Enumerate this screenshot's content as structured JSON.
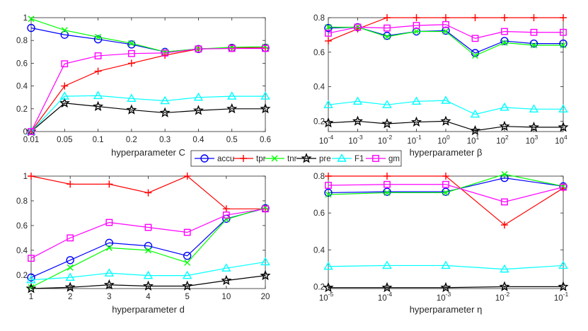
{
  "legend": {
    "items": [
      {
        "label": "accu",
        "color": "#0000ff",
        "marker": "circle"
      },
      {
        "label": "tpr",
        "color": "#ff0000",
        "marker": "plus"
      },
      {
        "label": "tnr",
        "color": "#00ff00",
        "marker": "x"
      },
      {
        "label": "pre",
        "color": "#000000",
        "marker": "star"
      },
      {
        "label": "F1",
        "color": "#00ffff",
        "marker": "triangle"
      },
      {
        "label": "gm",
        "color": "#ff00ff",
        "marker": "square"
      }
    ]
  },
  "chart_data": [
    {
      "type": "line",
      "id": "C",
      "xlabel": "hyperparameter C",
      "categories": [
        "0.01",
        "0.05",
        "0.1",
        "0.2",
        "0.3",
        "0.4",
        "0.5",
        "0.6"
      ],
      "ylim": [
        0,
        1
      ],
      "yticks": [
        "0",
        "0.2",
        "0.4",
        "0.6",
        "0.8",
        "1"
      ],
      "series": [
        {
          "name": "accu",
          "values": [
            0.91,
            0.85,
            0.81,
            0.765,
            0.7,
            0.725,
            0.735,
            0.735
          ]
        },
        {
          "name": "tpr",
          "values": [
            0.0,
            0.4,
            0.53,
            0.6,
            0.67,
            0.725,
            0.735,
            0.735
          ]
        },
        {
          "name": "tnr",
          "values": [
            0.99,
            0.89,
            0.83,
            0.775,
            0.7,
            0.725,
            0.74,
            0.745
          ]
        },
        {
          "name": "pre",
          "values": [
            0.0,
            0.25,
            0.22,
            0.19,
            0.165,
            0.185,
            0.2,
            0.2
          ]
        },
        {
          "name": "F1",
          "values": [
            0.0,
            0.31,
            0.315,
            0.29,
            0.27,
            0.3,
            0.31,
            0.31
          ]
        },
        {
          "name": "gm",
          "values": [
            0.0,
            0.595,
            0.665,
            0.685,
            0.69,
            0.725,
            0.73,
            0.73
          ]
        }
      ]
    },
    {
      "type": "line",
      "id": "beta",
      "xlabel": "hyperparameter β",
      "categories": [
        "10^-4",
        "10^-3",
        "10^-2",
        "10^-1",
        "10^0",
        "10^1",
        "10^2",
        "10^3",
        "10^4"
      ],
      "xticks": [
        {
          "base": "10",
          "exp": "-4"
        },
        {
          "base": "10",
          "exp": "-3"
        },
        {
          "base": "10",
          "exp": "-2"
        },
        {
          "base": "10",
          "exp": "-1"
        },
        {
          "base": "10",
          "exp": "0"
        },
        {
          "base": "10",
          "exp": "1"
        },
        {
          "base": "10",
          "exp": "2"
        },
        {
          "base": "10",
          "exp": "3"
        },
        {
          "base": "10",
          "exp": "4"
        }
      ],
      "ylim": [
        0.14,
        0.8
      ],
      "yticks": [
        "0.2",
        "0.4",
        "0.6",
        "0.8"
      ],
      "series": [
        {
          "name": "accu",
          "values": [
            0.74,
            0.745,
            0.695,
            0.72,
            0.725,
            0.595,
            0.665,
            0.65,
            0.65
          ]
        },
        {
          "name": "tpr",
          "values": [
            0.665,
            0.735,
            0.8,
            0.8,
            0.8,
            0.8,
            0.8,
            0.8,
            0.8
          ]
        },
        {
          "name": "tnr",
          "values": [
            0.745,
            0.745,
            0.69,
            0.72,
            0.72,
            0.58,
            0.655,
            0.64,
            0.64
          ]
        },
        {
          "name": "pre",
          "values": [
            0.19,
            0.2,
            0.185,
            0.195,
            0.2,
            0.145,
            0.17,
            0.165,
            0.165
          ]
        },
        {
          "name": "F1",
          "values": [
            0.295,
            0.315,
            0.295,
            0.315,
            0.32,
            0.24,
            0.28,
            0.27,
            0.27
          ]
        },
        {
          "name": "gm",
          "values": [
            0.71,
            0.745,
            0.74,
            0.755,
            0.76,
            0.68,
            0.72,
            0.715,
            0.715
          ]
        }
      ]
    },
    {
      "type": "line",
      "id": "d",
      "xlabel": "hyperparameter d",
      "categories": [
        "1",
        "2",
        "3",
        "4",
        "5",
        "10",
        "20"
      ],
      "ylim": [
        0.09,
        1
      ],
      "yticks": [
        "0.2",
        "0.4",
        "0.6",
        "0.8",
        "1"
      ],
      "series": [
        {
          "name": "accu",
          "values": [
            0.18,
            0.32,
            0.46,
            0.435,
            0.355,
            0.655,
            0.74
          ]
        },
        {
          "name": "tpr",
          "values": [
            1.0,
            0.935,
            0.935,
            0.865,
            1.0,
            0.735,
            0.735
          ]
        },
        {
          "name": "tnr",
          "values": [
            0.1,
            0.26,
            0.42,
            0.4,
            0.3,
            0.65,
            0.745
          ]
        },
        {
          "name": "pre",
          "values": [
            0.09,
            0.1,
            0.12,
            0.11,
            0.11,
            0.155,
            0.195
          ]
        },
        {
          "name": "F1",
          "values": [
            0.16,
            0.18,
            0.215,
            0.195,
            0.195,
            0.255,
            0.305
          ]
        },
        {
          "name": "gm",
          "values": [
            0.335,
            0.5,
            0.625,
            0.585,
            0.545,
            0.685,
            0.735
          ]
        }
      ]
    },
    {
      "type": "line",
      "id": "eta",
      "xlabel": "hyperparameter η",
      "categories": [
        "10^-5",
        "10^-4",
        "10^-3",
        "10^-2",
        "10^-1"
      ],
      "xticks": [
        {
          "base": "10",
          "exp": "-5"
        },
        {
          "base": "10",
          "exp": "-4"
        },
        {
          "base": "10",
          "exp": "-3"
        },
        {
          "base": "10",
          "exp": "-2"
        },
        {
          "base": "10",
          "exp": "-1"
        }
      ],
      "ylim": [
        0.19,
        0.8
      ],
      "yticks": [
        "0.2",
        "0.4",
        "0.6",
        "0.8"
      ],
      "series": [
        {
          "name": "accu",
          "values": [
            0.71,
            0.715,
            0.715,
            0.79,
            0.745
          ]
        },
        {
          "name": "tpr",
          "values": [
            0.8,
            0.8,
            0.8,
            0.535,
            0.735
          ]
        },
        {
          "name": "tnr",
          "values": [
            0.7,
            0.71,
            0.71,
            0.81,
            0.745
          ]
        },
        {
          "name": "pre",
          "values": [
            0.195,
            0.195,
            0.195,
            0.2,
            0.2
          ]
        },
        {
          "name": "F1",
          "values": [
            0.31,
            0.315,
            0.315,
            0.295,
            0.315
          ]
        },
        {
          "name": "gm",
          "values": [
            0.75,
            0.755,
            0.755,
            0.66,
            0.74
          ]
        }
      ]
    }
  ]
}
